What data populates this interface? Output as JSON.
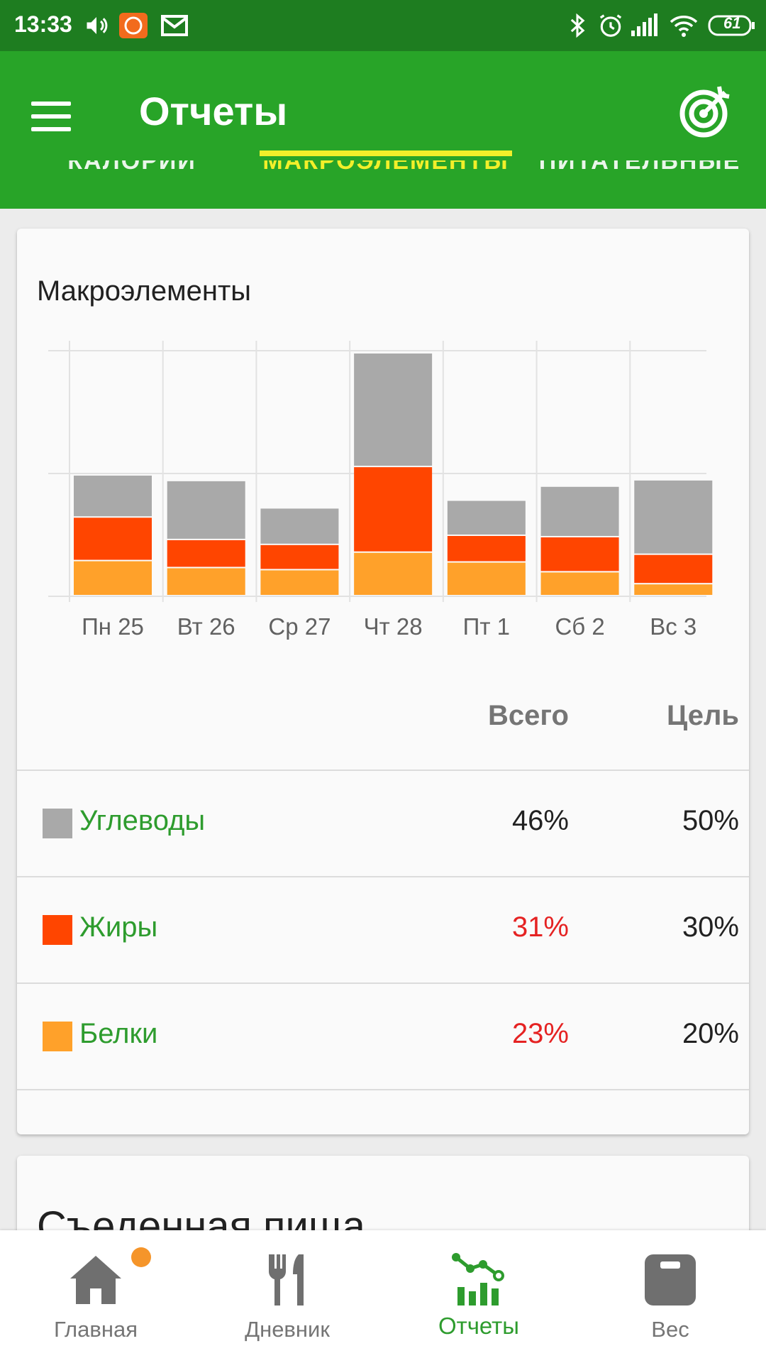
{
  "status_bar": {
    "time": "13:33",
    "battery": "61",
    "icons": [
      "volume-icon",
      "mi-app-icon",
      "mail-icon",
      "bluetooth-icon",
      "alarm-icon",
      "signal-icon",
      "wifi-icon",
      "battery-icon"
    ]
  },
  "app_bar": {
    "title": "Отчеты",
    "menu_icon": "menu-icon",
    "action_icon": "target-icon"
  },
  "tabs": [
    {
      "label": "КАЛОРИИ",
      "active": false
    },
    {
      "label": "МАКРОЭЛЕМЕНТЫ",
      "active": true
    },
    {
      "label": "ПИТАТЕЛЬНЫЕ",
      "active": false
    }
  ],
  "macros_card": {
    "title": "Макроэлементы",
    "col_total": "Всего",
    "col_goal": "Цель",
    "rows": [
      {
        "name": "Углеводы",
        "color": "#a9a9a9",
        "total": "46%",
        "goal": "50%",
        "over": false
      },
      {
        "name": "Жиры",
        "color": "#ff4500",
        "total": "31%",
        "goal": "30%",
        "over": true
      },
      {
        "name": "Белки",
        "color": "#ffa12a",
        "total": "23%",
        "goal": "20%",
        "over": true
      }
    ]
  },
  "chart_data": {
    "type": "bar",
    "stacked": true,
    "categories": [
      "Пн 25",
      "Вт 26",
      "Ср 27",
      "Чт 28",
      "Пт 1",
      "Сб 2",
      "Вс 3"
    ],
    "series": [
      {
        "name": "Белки",
        "color": "#ffa12a",
        "values": [
          50,
          40,
          37,
          62,
          48,
          34,
          17
        ]
      },
      {
        "name": "Жиры",
        "color": "#ff4500",
        "values": [
          62,
          40,
          36,
          122,
          38,
          50,
          42
        ]
      },
      {
        "name": "Углеводы",
        "color": "#a9a9a9",
        "values": [
          60,
          84,
          52,
          162,
          50,
          72,
          106
        ]
      }
    ],
    "ylim": [
      0,
      350
    ],
    "grid": true,
    "legend": "table below chart"
  },
  "second_card": {
    "title": "Съеденная пища"
  },
  "bottom_nav": [
    {
      "label": "Главная",
      "icon": "home-icon",
      "active": false,
      "badge": true
    },
    {
      "label": "Дневник",
      "icon": "fork-knife-icon",
      "active": false,
      "badge": false
    },
    {
      "label": "Отчеты",
      "icon": "reports-chart-icon",
      "active": true,
      "badge": false
    },
    {
      "label": "Вес",
      "icon": "scale-icon",
      "active": false,
      "badge": false
    }
  ]
}
